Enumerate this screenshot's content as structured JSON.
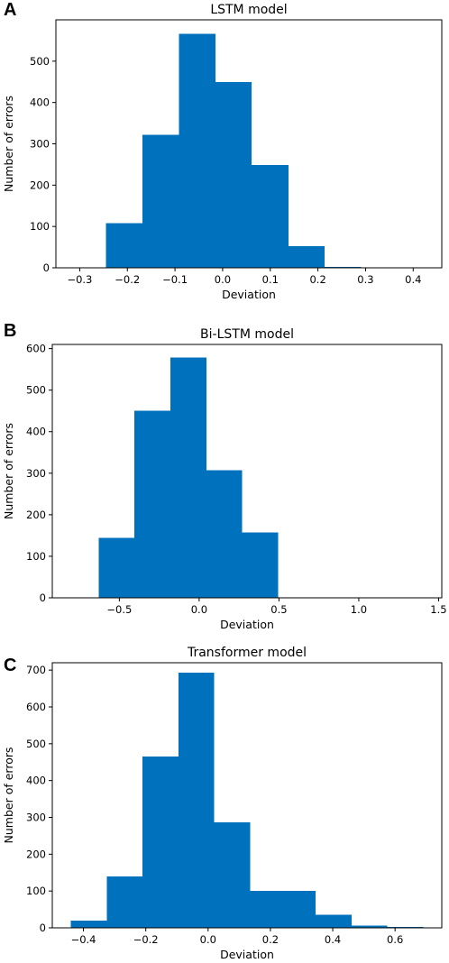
{
  "colors": {
    "bar": "#0072bd",
    "axis": "#000000",
    "background": "#ffffff"
  },
  "chart_data": [
    {
      "type": "bar",
      "panel": "A",
      "title": "LSTM model",
      "xlabel": "Deviation",
      "ylabel": "Number of errors",
      "xlim": [
        -0.35,
        0.46
      ],
      "ylim": [
        0,
        600
      ],
      "xticks": [
        -0.3,
        -0.2,
        -0.1,
        0.0,
        0.1,
        0.2,
        0.3,
        0.4
      ],
      "xtick_labels": [
        "−0.3",
        "−0.2",
        "−0.1",
        "0.0",
        "0.1",
        "0.2",
        "0.3",
        "0.4"
      ],
      "yticks": [
        0,
        100,
        200,
        300,
        400,
        500
      ],
      "ytick_labels": [
        "0",
        "100",
        "200",
        "300",
        "400",
        "500"
      ],
      "bin_edges": [
        -0.321,
        -0.245,
        -0.168,
        -0.092,
        -0.015,
        0.061,
        0.138,
        0.214,
        0.291,
        0.367,
        0.443
      ],
      "values": [
        1,
        108,
        322,
        566,
        450,
        249,
        52,
        2,
        1,
        1
      ],
      "grid": false
    },
    {
      "type": "bar",
      "panel": "B",
      "title": "Bi-LSTM model",
      "xlabel": "Deviation",
      "ylabel": "Number of errors",
      "xlim": [
        -0.92,
        1.52
      ],
      "ylim": [
        0,
        610
      ],
      "xticks": [
        -0.5,
        0.0,
        0.5,
        1.0,
        1.5
      ],
      "xtick_labels": [
        "−0.5",
        "0.0",
        "0.5",
        "1.0",
        "1.5"
      ],
      "yticks": [
        0,
        100,
        200,
        300,
        400,
        500,
        600
      ],
      "ytick_labels": [
        "0",
        "100",
        "200",
        "300",
        "400",
        "500",
        "600"
      ],
      "bin_edges": [
        -0.82,
        -0.63,
        -0.405,
        -0.18,
        0.045,
        0.27,
        0.495,
        0.72,
        0.945,
        1.17,
        1.395
      ],
      "values": [
        0,
        144,
        450,
        578,
        307,
        157,
        1,
        0,
        0,
        1
      ],
      "grid": false
    },
    {
      "type": "bar",
      "panel": "C",
      "title": "Transformer model",
      "xlabel": "Deviation",
      "ylabel": "Number of errors",
      "xlim": [
        -0.5,
        0.75
      ],
      "ylim": [
        0,
        720
      ],
      "xticks": [
        -0.4,
        -0.2,
        0.0,
        0.2,
        0.4,
        0.6
      ],
      "xtick_labels": [
        "−0.4",
        "−0.2",
        "0.0",
        "0.2",
        "0.4",
        "0.6"
      ],
      "yticks": [
        0,
        100,
        200,
        300,
        400,
        500,
        600,
        700
      ],
      "ytick_labels": [
        "0",
        "100",
        "200",
        "300",
        "400",
        "500",
        "600",
        "700"
      ],
      "bin_edges": [
        -0.44,
        -0.325,
        -0.21,
        -0.095,
        0.02,
        0.135,
        0.25,
        0.345,
        0.46,
        0.575,
        0.69
      ],
      "values": [
        20,
        140,
        465,
        693,
        286,
        100,
        100,
        36,
        6,
        3
      ],
      "grid": false
    }
  ]
}
